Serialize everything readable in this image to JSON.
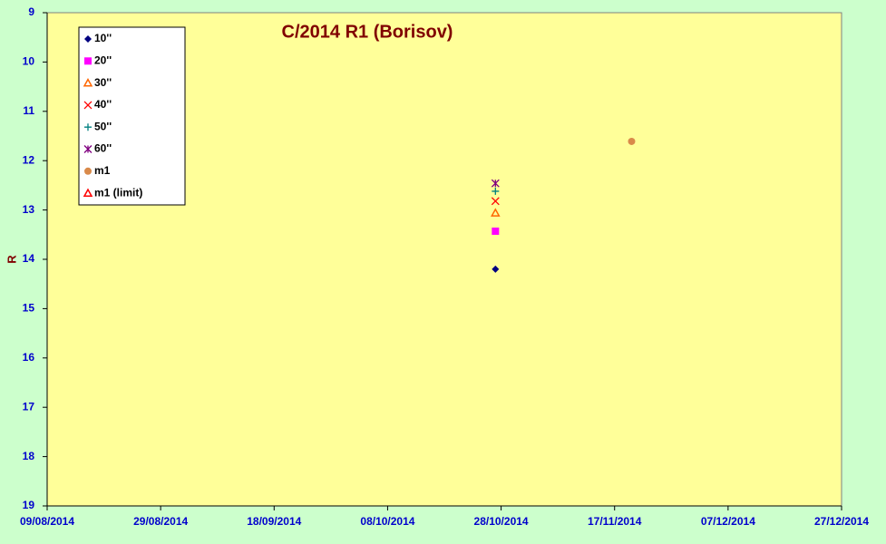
{
  "chart_data": {
    "type": "scatter",
    "title": "C/2014 R1 (Borisov)",
    "y_label": "R",
    "xlim": [
      "09/08/2014",
      "27/12/2014"
    ],
    "xticks": [
      "09/08/2014",
      "29/08/2014",
      "18/09/2014",
      "08/10/2014",
      "28/10/2014",
      "17/11/2014",
      "07/12/2014",
      "27/12/2014"
    ],
    "ylim": [
      9,
      19
    ],
    "y_inverted": true,
    "yticks": [
      9,
      10,
      11,
      12,
      13,
      14,
      15,
      16,
      17,
      18,
      19
    ],
    "grid": false,
    "legend": "top-left",
    "series": [
      {
        "name": "10''",
        "color": "#000080",
        "marker": "diamond",
        "x": [
          "27/10/2014"
        ],
        "values": [
          14.2
        ]
      },
      {
        "name": "20''",
        "color": "#ff00ff",
        "marker": "square",
        "x": [
          "27/10/2014"
        ],
        "values": [
          13.43
        ]
      },
      {
        "name": "30''",
        "color": "#ff6600",
        "marker": "triangle-open",
        "x": [
          "27/10/2014"
        ],
        "values": [
          13.06
        ]
      },
      {
        "name": "40''",
        "color": "#ff0000",
        "marker": "cross",
        "x": [
          "27/10/2014"
        ],
        "values": [
          12.82
        ]
      },
      {
        "name": "50''",
        "color": "#008080",
        "marker": "plus",
        "x": [
          "27/10/2014"
        ],
        "values": [
          12.62
        ]
      },
      {
        "name": "60''",
        "color": "#800080",
        "marker": "star",
        "x": [
          "27/10/2014"
        ],
        "values": [
          12.46
        ]
      },
      {
        "name": "m1",
        "color": "#d98a4a",
        "marker": "circle",
        "x": [
          "20/11/2014"
        ],
        "values": [
          11.61
        ]
      },
      {
        "name": "m1 (limit)",
        "color": "#ff0000",
        "marker": "triangle-open",
        "x": [],
        "values": []
      }
    ]
  }
}
